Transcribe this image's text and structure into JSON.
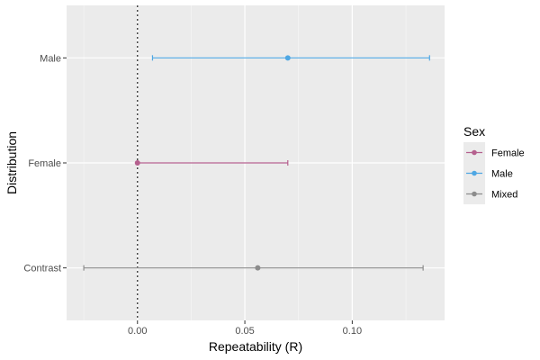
{
  "chart_data": {
    "type": "forest",
    "xlabel": "Repeatability (R)",
    "ylabel": "Distribution",
    "xlim": [
      -0.033,
      0.143
    ],
    "x_ticks": [
      0.0,
      0.05,
      0.1
    ],
    "x_tick_labels": [
      "0.00",
      "0.05",
      "0.10"
    ],
    "categories": [
      "Male",
      "Female",
      "Contrast"
    ],
    "reference_line": 0,
    "grid": true,
    "legend": {
      "title": "Sex",
      "position": "right",
      "entries": [
        {
          "label": "Female",
          "color": "#B5608E"
        },
        {
          "label": "Male",
          "color": "#4FA7E3"
        },
        {
          "label": "Mixed",
          "color": "#8C8C8C"
        }
      ]
    },
    "points": [
      {
        "category": "Male",
        "sex": "Male",
        "estimate": 0.07,
        "lower": 0.007,
        "upper": 0.136,
        "color": "#4FA7E3"
      },
      {
        "category": "Female",
        "sex": "Female",
        "estimate": 0.0,
        "lower": 0.0,
        "upper": 0.07,
        "color": "#B5608E"
      },
      {
        "category": "Contrast",
        "sex": "Mixed",
        "estimate": 0.056,
        "lower": -0.025,
        "upper": 0.133,
        "color": "#8C8C8C"
      }
    ]
  }
}
